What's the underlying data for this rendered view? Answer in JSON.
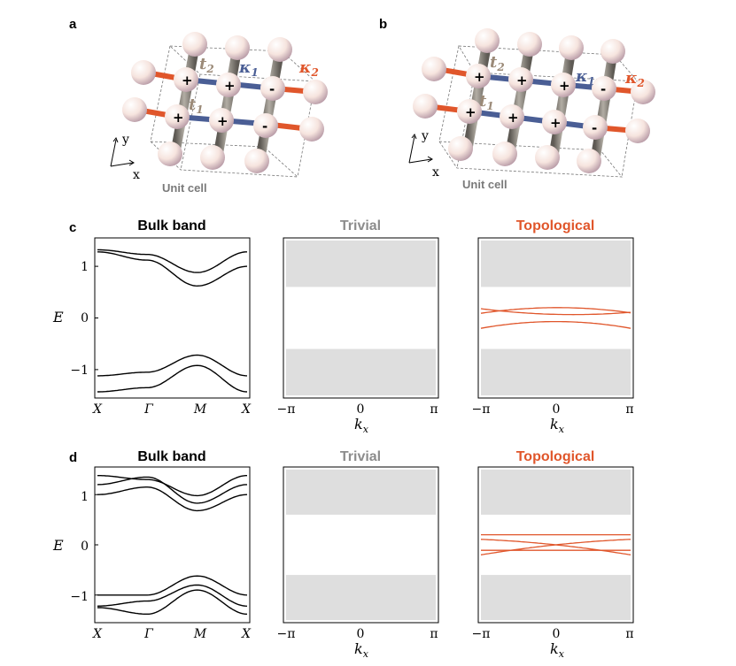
{
  "panels": {
    "a": "a",
    "b": "b",
    "c": "c",
    "d": "d"
  },
  "lattice": {
    "unit_cell": "Unit cell",
    "axis_x": "x",
    "axis_y": "y",
    "hop_t1": "t",
    "hop_t1_sub": "1",
    "hop_t2": "t",
    "hop_t2_sub": "2",
    "hop_k1": "κ",
    "hop_k1_sub": "1",
    "hop_k2": "κ",
    "hop_k2_sub": "2",
    "plus": "+",
    "minus": "-",
    "colors": {
      "t": "#9b8a78",
      "k1": "#4a5e95",
      "k2": "#e0562b",
      "rod": "#8e8a82",
      "sphere": "#f3e1da"
    },
    "a_signs": [
      "+",
      "+",
      "-",
      "+",
      "+",
      "-"
    ],
    "b_signs": [
      "+",
      "+",
      "+",
      "-",
      "+",
      "+",
      "+",
      "-"
    ]
  },
  "titles": {
    "bulk": "Bulk band",
    "trivial": "Trivial",
    "topological": "Topological",
    "colors": {
      "bulk": "#000000",
      "trivial": "#8c8c8c",
      "topological": "#e0562b"
    }
  },
  "axes": {
    "ylabel": "E",
    "y_ticks": [
      "1",
      "0",
      "−1"
    ],
    "bulk_x_ticks": [
      "X",
      "Γ",
      "M",
      "X"
    ],
    "k_ticks": [
      "−π",
      "0",
      "π"
    ],
    "kx": "k",
    "kx_sub": "x"
  },
  "chart_data": [
    {
      "panel": "c-bulk",
      "type": "line",
      "ylim": [
        -1.55,
        1.55
      ],
      "categories": [
        "X",
        "Γ",
        "M",
        "X"
      ],
      "series": [
        {
          "values": [
            1.32,
            1.23,
            0.88,
            1.28
          ]
        },
        {
          "values": [
            1.28,
            1.12,
            0.62,
            1.0
          ]
        },
        {
          "values": [
            -1.12,
            -1.05,
            -0.72,
            -1.12
          ]
        },
        {
          "values": [
            -1.43,
            -1.35,
            -0.92,
            -1.43
          ]
        }
      ]
    },
    {
      "panel": "c-trivial",
      "type": "area",
      "xlim": [
        -3.14,
        3.14
      ],
      "ylim": [
        -1.55,
        1.55
      ],
      "bands": [
        [
          0.6,
          1.5
        ],
        [
          -1.5,
          -0.6
        ]
      ]
    },
    {
      "panel": "c-topological",
      "type": "line",
      "xlim": [
        -3.14,
        3.14
      ],
      "ylim": [
        -1.55,
        1.55
      ],
      "bands": [
        [
          0.6,
          1.5
        ],
        [
          -1.5,
          -0.6
        ]
      ],
      "series": [
        {
          "x": [
            -3.14,
            0,
            3.14
          ],
          "values": [
            0.18,
            0.07,
            0.11
          ]
        },
        {
          "x": [
            -3.14,
            0,
            3.14
          ],
          "values": [
            0.09,
            0.2,
            0.1
          ]
        },
        {
          "x": [
            -3.14,
            0,
            3.14
          ],
          "values": [
            -0.2,
            -0.07,
            -0.2
          ]
        }
      ]
    },
    {
      "panel": "d-bulk",
      "type": "line",
      "ylim": [
        -1.55,
        1.55
      ],
      "categories": [
        "X",
        "Γ",
        "M",
        "X"
      ],
      "series": [
        {
          "values": [
            1.38,
            1.3,
            0.98,
            1.38
          ]
        },
        {
          "values": [
            1.2,
            1.35,
            0.83,
            1.2
          ]
        },
        {
          "values": [
            1.0,
            1.15,
            0.68,
            1.0
          ]
        },
        {
          "values": [
            -1.0,
            -1.0,
            -0.62,
            -1.0
          ]
        },
        {
          "values": [
            -1.22,
            -1.12,
            -0.8,
            -1.22
          ]
        },
        {
          "values": [
            -1.25,
            -1.38,
            -0.9,
            -1.38
          ]
        }
      ]
    },
    {
      "panel": "d-trivial",
      "type": "area",
      "xlim": [
        -3.14,
        3.14
      ],
      "ylim": [
        -1.55,
        1.55
      ],
      "bands": [
        [
          0.6,
          1.5
        ],
        [
          -1.5,
          -0.6
        ]
      ]
    },
    {
      "panel": "d-topological",
      "type": "line",
      "xlim": [
        -3.14,
        3.14
      ],
      "ylim": [
        -1.55,
        1.55
      ],
      "bands": [
        [
          0.6,
          1.5
        ],
        [
          -1.5,
          -0.6
        ]
      ],
      "series": [
        {
          "x": [
            -3.14,
            0,
            3.14
          ],
          "values": [
            0.2,
            0.2,
            0.2
          ]
        },
        {
          "x": [
            -3.14,
            0,
            3.14
          ],
          "values": [
            0.11,
            0.0,
            -0.2
          ]
        },
        {
          "x": [
            -3.14,
            0,
            3.14
          ],
          "values": [
            -0.2,
            0.0,
            0.11
          ]
        },
        {
          "x": [
            -3.14,
            0,
            3.14
          ],
          "values": [
            -0.11,
            -0.11,
            -0.11
          ]
        }
      ]
    }
  ]
}
